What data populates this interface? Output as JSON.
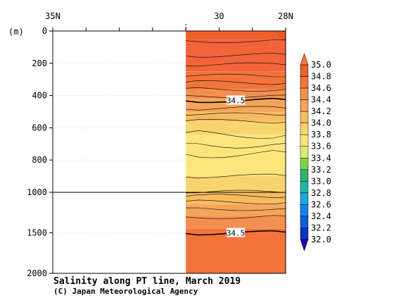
{
  "chart_data": {
    "type": "heatmap",
    "title": "Salinity along PT line, March 2019",
    "credit": "(C) Japan Meteorological Agency",
    "ylabel": "(m)",
    "x_ticks": [
      "35N",
      "30",
      "28N"
    ],
    "y_ticks": [
      "0",
      "200",
      "400",
      "600",
      "800",
      "1000",
      "1500",
      "2000"
    ],
    "xlim_deg_north": [
      35,
      28
    ],
    "ylim_depth_m": [
      0,
      2000
    ],
    "y_scale_break_m": 1000,
    "data_coverage_lat": [
      31,
      28
    ],
    "colorbar": {
      "levels": [
        "35.0",
        "34.8",
        "34.6",
        "34.4",
        "34.2",
        "34.0",
        "33.8",
        "33.6",
        "33.4",
        "33.2",
        "33.0",
        "32.8",
        "32.6",
        "32.4",
        "32.2",
        "32.0"
      ],
      "colors": [
        "#f0602a",
        "#f2743a",
        "#f4904f",
        "#f5a55a",
        "#f7bb62",
        "#f8d46c",
        "#fbe67c",
        "#d6ec74",
        "#7fd24f",
        "#2db56a",
        "#1fb7a8",
        "#17a8e0",
        "#1384e6",
        "#0b5fd8",
        "#0a34c8",
        "#06149c"
      ],
      "top_color": "#f07a3a",
      "bottom_color": "#1a0aa6"
    },
    "contour_labels": [
      {
        "value": "34.5",
        "lat": 29.5,
        "depth_m": 430
      },
      {
        "value": "34.5",
        "lat": 29.5,
        "depth_m": 1500
      }
    ],
    "salinity_layers": [
      {
        "depth_top_m": 0,
        "depth_bottom_m": 50,
        "value": 34.85,
        "color": "#f0602a"
      },
      {
        "depth_top_m": 50,
        "depth_bottom_m": 250,
        "value": 34.8,
        "color": "#f2643a"
      },
      {
        "depth_top_m": 250,
        "depth_bottom_m": 360,
        "value": 34.7,
        "color": "#f2743a"
      },
      {
        "depth_top_m": 360,
        "depth_bottom_m": 420,
        "value": 34.6,
        "color": "#f4904f"
      },
      {
        "depth_top_m": 420,
        "depth_bottom_m": 500,
        "value": 34.5,
        "color": "#f5a55a"
      },
      {
        "depth_top_m": 500,
        "depth_bottom_m": 560,
        "value": 34.3,
        "color": "#f7bb62"
      },
      {
        "depth_top_m": 560,
        "depth_bottom_m": 640,
        "value": 34.1,
        "color": "#f8d46c"
      },
      {
        "depth_top_m": 640,
        "depth_bottom_m": 900,
        "value": 33.9,
        "color": "#fbe67c"
      },
      {
        "depth_top_m": 900,
        "depth_bottom_m": 1000,
        "value": 34.1,
        "color": "#f8d46c"
      },
      {
        "depth_top_m": 1000,
        "depth_bottom_m": 1150,
        "value": 34.3,
        "color": "#f7bb62"
      },
      {
        "depth_top_m": 1150,
        "depth_bottom_m": 1300,
        "value": 34.4,
        "color": "#f5a55a"
      },
      {
        "depth_top_m": 1300,
        "depth_bottom_m": 1450,
        "value": 34.5,
        "color": "#f4904f"
      },
      {
        "depth_top_m": 1450,
        "depth_bottom_m": 2000,
        "value": 34.6,
        "color": "#f2743a"
      }
    ],
    "contours_depth_m": [
      60,
      150,
      210,
      280,
      320,
      360,
      400,
      430,
      480,
      520,
      560,
      640,
      700,
      760,
      900,
      1000,
      1050,
      1120,
      1200,
      1300,
      1500
    ]
  }
}
